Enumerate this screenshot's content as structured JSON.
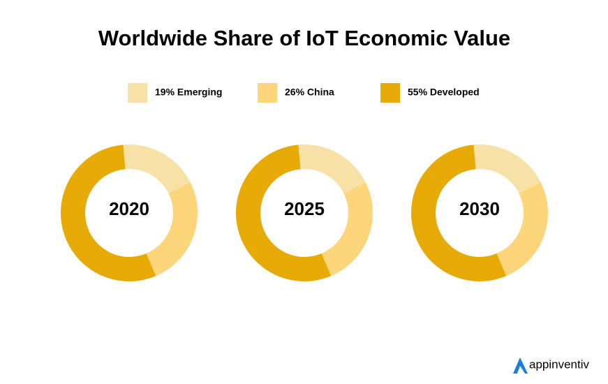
{
  "chart_data": {
    "type": "donut",
    "title": "Worldwide Share of IoT Economic Value",
    "categories": [
      "19% Emerging",
      "26% China",
      "55% Developed"
    ],
    "values": [
      19,
      26,
      55
    ],
    "colors": [
      "#f8e1a6",
      "#fdd67c",
      "#e7aa07"
    ],
    "panels": [
      "2020",
      "2025",
      "2030"
    ]
  },
  "logo": "appinventiv"
}
